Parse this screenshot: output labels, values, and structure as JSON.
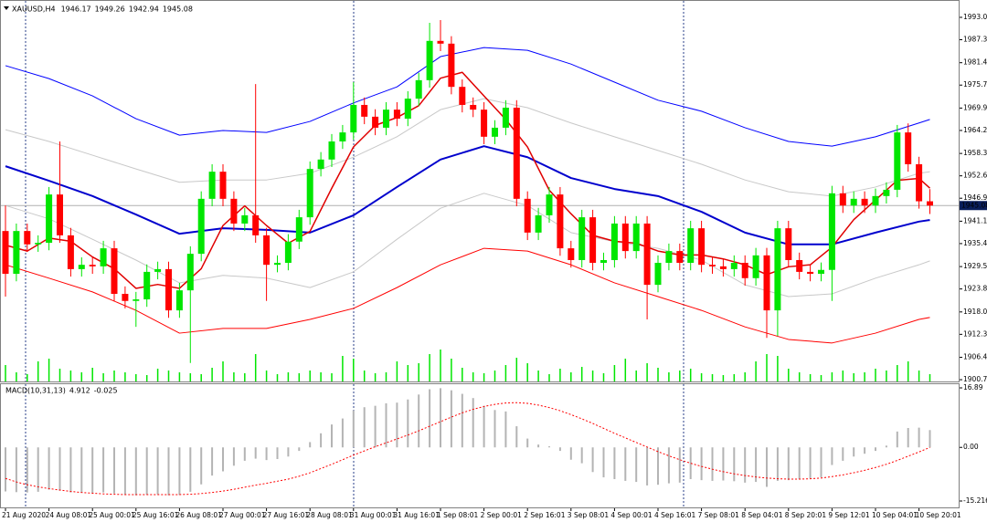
{
  "chart_data": [
    {
      "type": "candlestick",
      "title": "XAUUSD,H4",
      "categories": [
        "21 Aug 2020",
        null,
        null,
        null,
        "24 Aug 08:01",
        null,
        null,
        null,
        "25 Aug 00:01",
        null,
        null,
        null,
        "25 Aug 16:01",
        null,
        null,
        null,
        "26 Aug 08:01",
        null,
        null,
        null,
        "27 Aug 00:01",
        null,
        null,
        null,
        "27 Aug 16:01",
        null,
        null,
        null,
        "28 Aug 08:01",
        null,
        null,
        null,
        "31 Aug 00:01",
        null,
        null,
        null,
        "31 Aug 16:01",
        null,
        null,
        null,
        "1 Sep 08:01",
        null,
        null,
        null,
        "2 Sep 00:01",
        null,
        null,
        null,
        "2 Sep 16:01",
        null,
        null,
        null,
        "3 Sep 08:01",
        null,
        null,
        null,
        "4 Sep 00:01",
        null,
        null,
        null,
        "4 Sep 16:01",
        null,
        null,
        null,
        "7 Sep 08:01",
        null,
        null,
        null,
        "8 Sep 04:01",
        null,
        null,
        null,
        "8 Sep 20:01",
        null,
        null,
        null,
        "9 Sep 12:01",
        null,
        null,
        null,
        "10 Sep 04:01",
        null,
        null,
        null,
        "10 Sep 20:01",
        null
      ],
      "open": [
        1938.6,
        1927.7,
        1938.6,
        1935.2,
        1935.6,
        1947.9,
        1937.5,
        1928.9,
        1930.0,
        1929.6,
        1934.2,
        1922.6,
        1920.8,
        1921.2,
        1928.2,
        1928.9,
        1918.4,
        1923.5,
        1932.8,
        1946.8,
        1953.7,
        1946.8,
        1940.5,
        1942.6,
        1937.5,
        1930.0,
        1930.5,
        1935.9,
        1942.1,
        1954.4,
        1956.8,
        1961.4,
        1963.7,
        1970.7,
        1967.7,
        1964.9,
        1969.5,
        1967.2,
        1972.3,
        1977.0,
        1987.0,
        1986.3,
        1975.3,
        1970.7,
        1969.5,
        1962.6,
        1964.9,
        1970.0,
        1946.8,
        1938.2,
        1942.6,
        1947.9,
        1934.2,
        1931.2,
        1942.1,
        1930.5,
        1931.2,
        1940.5,
        1933.5,
        1940.5,
        1924.9,
        1930.5,
        1933.5,
        1930.5,
        1939.3,
        1930.0,
        1929.6,
        1928.9,
        1930.5,
        1926.6,
        1932.4,
        1918.4,
        1939.3,
        1931.2,
        1928.2,
        1927.7,
        1928.7,
        1948.2,
        1945.1,
        1946.8,
        1945.1,
        1947.5,
        1949.1,
        1963.7,
        1955.6,
        1946.17
      ],
      "high": [
        1945.1,
        1940.5,
        1940.5,
        1937.5,
        1949.8,
        1961.4,
        1939.4,
        1931.9,
        1931.9,
        1936.1,
        1936.1,
        1924.5,
        1923.1,
        1930.1,
        1930.8,
        1930.8,
        1925.4,
        1934.7,
        1948.7,
        1955.6,
        1955.6,
        1948.7,
        1944.5,
        1976.0,
        1939.4,
        1932.4,
        1937.8,
        1944.0,
        1956.3,
        1958.7,
        1963.3,
        1965.6,
        1976.5,
        1972.6,
        1969.6,
        1971.4,
        1971.4,
        1974.2,
        1978.9,
        1991.6,
        1992.3,
        1988.2,
        1977.2,
        1972.6,
        1971.4,
        1966.8,
        1971.9,
        1971.9,
        1948.7,
        1944.5,
        1949.8,
        1949.8,
        1936.1,
        1944.0,
        1944.0,
        1933.1,
        1942.4,
        1942.4,
        1942.4,
        1942.4,
        1932.4,
        1935.4,
        1935.4,
        1941.2,
        1941.2,
        1931.9,
        1931.5,
        1932.4,
        1932.4,
        1934.3,
        1934.3,
        1941.2,
        1941.2,
        1933.1,
        1930.1,
        1930.6,
        1950.1,
        1950.1,
        1948.7,
        1948.7,
        1949.4,
        1951.0,
        1965.6,
        1966.0,
        1957.5,
        1949.26
      ],
      "low": [
        1921.9,
        1925.8,
        1933.3,
        1933.3,
        1933.7,
        1935.6,
        1927.0,
        1927.0,
        1927.7,
        1927.7,
        1920.7,
        1918.9,
        1914.2,
        1919.3,
        1926.3,
        1916.5,
        1916.5,
        1905.0,
        1930.9,
        1944.9,
        1944.9,
        1938.6,
        1938.6,
        1935.6,
        1920.8,
        1928.1,
        1928.6,
        1934.0,
        1940.2,
        1952.5,
        1954.9,
        1959.5,
        1961.8,
        1965.8,
        1963.0,
        1963.0,
        1965.3,
        1965.3,
        1970.4,
        1975.1,
        1984.4,
        1973.4,
        1968.8,
        1967.6,
        1960.7,
        1960.7,
        1963.0,
        1944.9,
        1936.3,
        1936.3,
        1940.7,
        1932.3,
        1929.3,
        1929.3,
        1928.6,
        1928.6,
        1929.3,
        1931.6,
        1931.6,
        1916.1,
        1923.0,
        1928.6,
        1928.6,
        1928.6,
        1928.1,
        1927.7,
        1927.0,
        1927.0,
        1924.7,
        1924.7,
        1911.4,
        1911.9,
        1929.3,
        1926.3,
        1925.8,
        1925.8,
        1920.8,
        1943.2,
        1943.2,
        1943.2,
        1943.2,
        1945.6,
        1947.2,
        1953.7,
        1944.3,
        1942.94
      ],
      "close": [
        1927.7,
        1938.6,
        1935.2,
        1935.6,
        1947.9,
        1937.5,
        1928.9,
        1930.0,
        1929.6,
        1934.2,
        1922.6,
        1920.8,
        1921.2,
        1928.2,
        1928.9,
        1918.4,
        1923.5,
        1932.8,
        1946.8,
        1953.7,
        1946.8,
        1940.5,
        1942.6,
        1937.5,
        1930.0,
        1930.5,
        1935.9,
        1942.1,
        1954.4,
        1956.8,
        1961.4,
        1963.7,
        1970.7,
        1967.7,
        1964.9,
        1969.5,
        1967.2,
        1972.3,
        1977.0,
        1987.0,
        1986.3,
        1975.3,
        1970.7,
        1969.5,
        1962.6,
        1964.9,
        1970.0,
        1946.8,
        1938.2,
        1942.6,
        1947.9,
        1934.2,
        1931.2,
        1942.1,
        1930.5,
        1931.2,
        1940.5,
        1933.5,
        1940.5,
        1924.9,
        1930.5,
        1933.5,
        1930.5,
        1939.3,
        1930.0,
        1929.6,
        1928.9,
        1930.5,
        1926.6,
        1932.4,
        1918.4,
        1939.3,
        1931.2,
        1928.2,
        1927.7,
        1928.7,
        1948.2,
        1945.1,
        1946.8,
        1945.1,
        1947.5,
        1949.1,
        1963.7,
        1955.6,
        1946.17,
        1945.08
      ],
      "up_color": "#00e600",
      "down_color": "#ff0000",
      "ylim": [
        1900.3,
        1996.25
      ],
      "yticks": [
        {
          "value": 1993,
          "label": "1993.00"
        },
        {
          "value": 1987.3,
          "label": "1987.30"
        },
        1981.45,
        1975.75,
        {
          "value": 1969.9,
          "label": "1969.90"
        },
        {
          "value": 1964.2,
          "label": "1964.20"
        },
        1958.35,
        1952.65,
        1946.95,
        {
          "value": 1941.1,
          "label": "1941.10"
        },
        {
          "value": 1935.4,
          "label": "1935.40"
        },
        1929.55,
        1923.85,
        {
          "value": 1918,
          "label": "1918.00"
        },
        {
          "value": 1912.3,
          "label": "1912.30"
        },
        1906.45,
        1900.75
      ],
      "volume": {
        "color": "#00e600",
        "values": [
          18,
          10,
          8,
          22,
          25,
          14,
          12,
          10,
          15,
          9,
          12,
          10,
          8,
          7,
          14,
          12,
          10,
          9,
          8,
          15,
          22,
          10,
          9,
          30,
          12,
          8,
          10,
          9,
          12,
          10,
          9,
          28,
          25,
          12,
          9,
          10,
          22,
          18,
          20,
          30,
          35,
          25,
          15,
          10,
          9,
          12,
          18,
          26,
          20,
          12,
          8,
          14,
          10,
          16,
          12,
          9,
          18,
          25,
          12,
          20,
          15,
          10,
          12,
          14,
          9,
          8,
          7,
          8,
          10,
          22,
          30,
          28,
          14,
          10,
          8,
          7,
          10,
          12,
          9,
          10,
          14,
          12,
          18,
          22,
          12,
          8
        ]
      },
      "lines": [
        {
          "color": "#0000ff",
          "width": 1,
          "x": [
            0,
            4,
            8,
            12,
            16,
            20,
            24,
            28,
            32,
            36,
            40,
            44,
            48,
            52,
            56,
            60,
            64,
            68,
            72,
            76,
            80,
            84,
            85
          ],
          "values": [
            1980.7,
            1977.4,
            1973.0,
            1967.2,
            1963.0,
            1964.2,
            1963.7,
            1966.5,
            1971.2,
            1975.3,
            1983.0,
            1985.3,
            1984.6,
            1981.1,
            1976.5,
            1971.9,
            1969.1,
            1964.9,
            1961.4,
            1960.2,
            1962.6,
            1966.1,
            1967.0
          ]
        },
        {
          "color": "#c8c8c8",
          "width": 1,
          "x": [
            0,
            4,
            8,
            12,
            16,
            20,
            24,
            28,
            32,
            36,
            40,
            44,
            48,
            52,
            56,
            60,
            64,
            68,
            72,
            76,
            80,
            84,
            85
          ],
          "values": [
            1964.4,
            1961.4,
            1957.9,
            1954.4,
            1951.0,
            1951.6,
            1951.6,
            1953.3,
            1957.4,
            1962.6,
            1969.5,
            1972.3,
            1970.0,
            1966.1,
            1962.6,
            1959.1,
            1955.6,
            1951.6,
            1948.6,
            1947.5,
            1949.8,
            1953.3,
            1953.7
          ]
        },
        {
          "color": "#c8c8c8",
          "width": 1,
          "x": [
            0,
            4,
            8,
            12,
            16,
            20,
            24,
            28,
            32,
            36,
            40,
            44,
            48,
            52,
            56,
            60,
            64,
            68,
            72,
            76,
            80,
            84,
            85
          ],
          "values": [
            1945.1,
            1941.7,
            1936.5,
            1931.2,
            1925.4,
            1927.3,
            1926.6,
            1924.2,
            1928.2,
            1936.5,
            1944.4,
            1948.2,
            1945.1,
            1938.2,
            1935.9,
            1934.2,
            1931.2,
            1924.9,
            1921.9,
            1922.6,
            1926.6,
            1930.0,
            1931.0
          ]
        },
        {
          "color": "#ff0000",
          "width": 1,
          "x": [
            0,
            4,
            8,
            12,
            16,
            20,
            24,
            28,
            32,
            36,
            40,
            44,
            48,
            52,
            56,
            60,
            64,
            68,
            72,
            76,
            80,
            84,
            85
          ],
          "values": [
            1930.0,
            1926.6,
            1923.1,
            1918.4,
            1912.6,
            1913.8,
            1913.8,
            1916.1,
            1918.9,
            1924.2,
            1930.0,
            1934.2,
            1933.5,
            1930.0,
            1925.4,
            1921.9,
            1918.4,
            1914.2,
            1911.0,
            1910.1,
            1912.6,
            1916.1,
            1916.6
          ]
        },
        {
          "color": "#0000cd",
          "width": 2,
          "x": [
            0,
            4,
            8,
            12,
            16,
            20,
            24,
            28,
            32,
            36,
            40,
            44,
            48,
            52,
            56,
            60,
            64,
            68,
            72,
            76,
            80,
            84,
            85
          ],
          "values": [
            1955.1,
            1951.4,
            1947.5,
            1942.8,
            1937.9,
            1939.3,
            1938.9,
            1938.2,
            1942.6,
            1949.8,
            1956.8,
            1960.2,
            1957.4,
            1952.1,
            1949.3,
            1947.5,
            1943.5,
            1938.2,
            1935.2,
            1935.2,
            1938.2,
            1941.0,
            1941.4
          ]
        },
        {
          "color": "#e00000",
          "width": 1.5,
          "x": [
            0,
            2,
            4,
            6,
            8,
            10,
            12,
            14,
            16,
            18,
            20,
            22,
            24,
            26,
            28,
            30,
            32,
            34,
            36,
            38,
            40,
            42,
            44,
            46,
            48,
            50,
            52,
            54,
            56,
            58,
            60,
            62,
            64,
            66,
            68,
            70,
            72,
            74,
            76,
            78,
            80,
            82,
            84,
            85
          ],
          "values": [
            1935.0,
            1933.5,
            1936.8,
            1936.0,
            1932.0,
            1929.0,
            1924.0,
            1925.0,
            1924.0,
            1929.0,
            1940.0,
            1945.0,
            1940.0,
            1935.5,
            1938.5,
            1949.5,
            1960.0,
            1965.5,
            1967.5,
            1970.5,
            1977.5,
            1979.0,
            1973.0,
            1967.0,
            1960.0,
            1949.0,
            1943.0,
            1937.5,
            1936.0,
            1935.5,
            1933.5,
            1932.5,
            1932.5,
            1931.5,
            1930.0,
            1927.5,
            1929.5,
            1930.0,
            1934.5,
            1941.5,
            1946.5,
            1951.5,
            1952.0,
            1949.5
          ]
        }
      ]
    },
    {
      "type": "macd",
      "title": "MACD(10,31,13)",
      "series": [
        {
          "color": "#b4b4b4",
          "values": [
            -12.5,
            -12.7,
            -12.8,
            -12.6,
            -12.0,
            -12.3,
            -12.8,
            -12.9,
            -13.0,
            -12.8,
            -13.1,
            -13.5,
            -13.6,
            -13.4,
            -13.3,
            -13.6,
            -13.5,
            -12.6,
            -10.5,
            -8.0,
            -6.8,
            -5.2,
            -3.8,
            -3.2,
            -3.6,
            -3.3,
            -2.6,
            -1.0,
            1.5,
            4.0,
            6.5,
            8.2,
            10.5,
            11.4,
            11.8,
            12.5,
            12.7,
            13.6,
            15.0,
            16.5,
            16.8,
            16.2,
            15.2,
            14.0,
            11.8,
            10.6,
            10.2,
            6.0,
            2.5,
            0.8,
            0.3,
            -1.0,
            -3.5,
            -4.5,
            -7.0,
            -8.5,
            -9.0,
            -9.5,
            -9.8,
            -10.8,
            -10.6,
            -10.2,
            -10.0,
            -9.0,
            -9.3,
            -9.5,
            -9.4,
            -9.6,
            -10.0,
            -9.8,
            -11.2,
            -9.5,
            -9.3,
            -9.0,
            -8.8,
            -8.5,
            -5.0,
            -3.8,
            -2.6,
            -1.8,
            -1.0,
            0.5,
            4.5,
            5.5,
            5.6,
            4.912
          ]
        },
        {
          "color": "#ff0000",
          "dash": true,
          "values": [
            -8.8,
            -9.8,
            -10.6,
            -11.2,
            -11.7,
            -12.1,
            -12.5,
            -12.8,
            -13.0,
            -13.2,
            -13.3,
            -13.4,
            -13.4,
            -13.4,
            -13.4,
            -13.4,
            -13.4,
            -13.3,
            -13.1,
            -12.8,
            -12.4,
            -11.9,
            -11.3,
            -10.7,
            -10.2,
            -9.6,
            -9.0,
            -8.2,
            -7.2,
            -6.0,
            -4.8,
            -3.5,
            -2.2,
            -1.0,
            0.2,
            1.3,
            2.4,
            3.5,
            4.7,
            6.0,
            7.3,
            8.6,
            9.8,
            10.8,
            11.6,
            12.2,
            12.6,
            12.7,
            12.5,
            12.0,
            11.3,
            10.4,
            9.3,
            8.1,
            6.8,
            5.4,
            4.0,
            2.7,
            1.4,
            0.1,
            -1.2,
            -2.4,
            -3.5,
            -4.5,
            -5.4,
            -6.2,
            -6.9,
            -7.5,
            -8.0,
            -8.4,
            -8.7,
            -8.9,
            -9.0,
            -9.0,
            -8.9,
            -8.7,
            -8.3,
            -7.8,
            -7.2,
            -6.5,
            -5.7,
            -4.8,
            -3.7,
            -2.5,
            -1.3,
            -0.025
          ]
        }
      ],
      "ylim": [
        -17.03,
        17.93
      ],
      "yticks": [
        16.89,
        {
          "value": 0,
          "label": "0.00"
        },
        -15.216
      ]
    }
  ]
}
